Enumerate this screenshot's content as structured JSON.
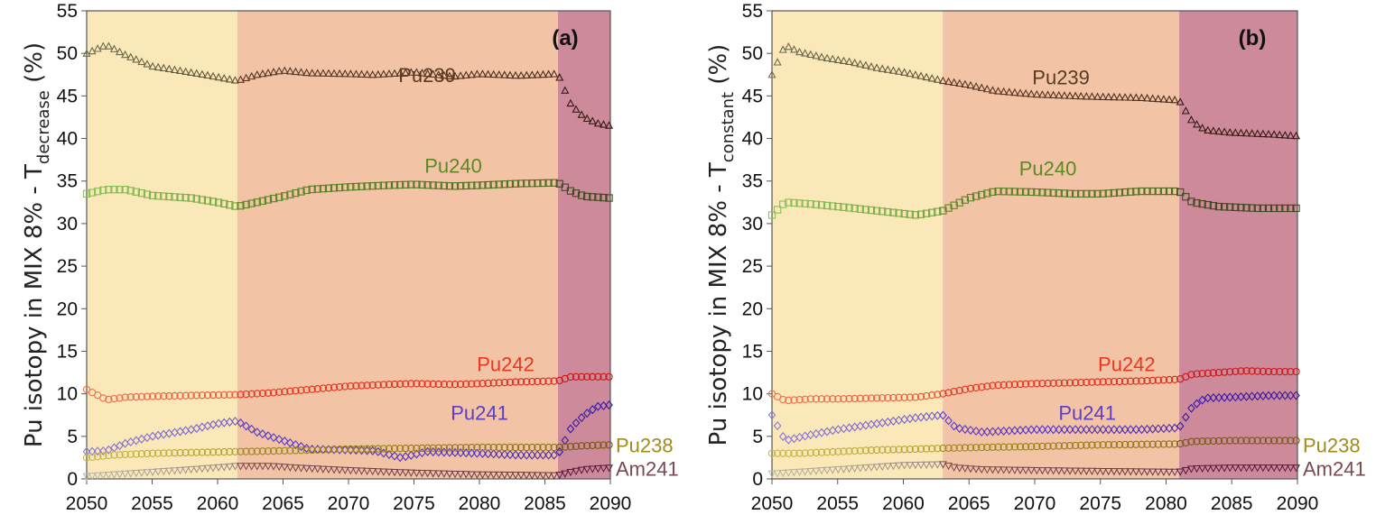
{
  "chart_data": [
    {
      "type": "scatter",
      "panel_label": "(a)",
      "ylabel": {
        "main": "Pu isotopy in MIX 8% - T",
        "subscript": "decrease",
        "unit": " (%)"
      },
      "xlim": [
        2050,
        2090
      ],
      "ylim": [
        0,
        55
      ],
      "xticks": [
        2050,
        2055,
        2060,
        2065,
        2070,
        2075,
        2080,
        2085,
        2090
      ],
      "yticks": [
        0,
        5,
        10,
        15,
        20,
        25,
        30,
        35,
        40,
        45,
        50,
        55
      ],
      "grid": false,
      "phases": [
        {
          "from": 2050,
          "to": 2061.5,
          "color": "#fbe8b8"
        },
        {
          "from": 2061.5,
          "to": 2086,
          "color": "#f3c3a5"
        },
        {
          "from": 2086,
          "to": 2090,
          "color": "#cc8a9a"
        }
      ],
      "series": [
        {
          "name": "Pu239",
          "marker": "triangle",
          "colors": [
            "#6e6e52",
            "#5b3a22",
            "#3a1a14"
          ],
          "label_at": [
            2076,
            47.5
          ],
          "points": [
            [
              2050,
              50
            ],
            [
              2051.5,
              51
            ],
            [
              2053,
              49.8
            ],
            [
              2055,
              48.5
            ],
            [
              2057,
              48
            ],
            [
              2059,
              47.5
            ],
            [
              2061.5,
              46.8
            ],
            [
              2063,
              47.5
            ],
            [
              2065,
              48
            ],
            [
              2067,
              47.7
            ],
            [
              2070,
              47.6
            ],
            [
              2072,
              47.5
            ],
            [
              2075,
              47.8
            ],
            [
              2078,
              47.3
            ],
            [
              2080,
              47.6
            ],
            [
              2083,
              47.4
            ],
            [
              2086,
              47.6
            ],
            [
              2087,
              44
            ],
            [
              2088,
              42.5
            ],
            [
              2089,
              41.8
            ],
            [
              2090,
              41.5
            ]
          ]
        },
        {
          "name": "Pu240",
          "marker": "square",
          "colors": [
            "#8cc05a",
            "#5a8a22",
            "#3e4a1e"
          ],
          "label_at": [
            2078,
            36.8
          ],
          "points": [
            [
              2050,
              33.5
            ],
            [
              2051.5,
              34
            ],
            [
              2053,
              34
            ],
            [
              2055,
              33.3
            ],
            [
              2058,
              33
            ],
            [
              2060,
              32.5
            ],
            [
              2061.5,
              32
            ],
            [
              2063,
              32.5
            ],
            [
              2065,
              33.2
            ],
            [
              2067,
              34
            ],
            [
              2070,
              34.3
            ],
            [
              2073,
              34.5
            ],
            [
              2075,
              34.6
            ],
            [
              2078,
              34.4
            ],
            [
              2080,
              34.5
            ],
            [
              2083,
              34.7
            ],
            [
              2086,
              34.8
            ],
            [
              2087,
              33.8
            ],
            [
              2088,
              33.2
            ],
            [
              2090,
              33
            ]
          ]
        },
        {
          "name": "Pu242",
          "marker": "circle",
          "colors": [
            "#f07050",
            "#e83820",
            "#cc1818"
          ],
          "label_at": [
            2082,
            13.5
          ],
          "points": [
            [
              2050,
              10.5
            ],
            [
              2051.5,
              9.3
            ],
            [
              2053,
              9.6
            ],
            [
              2055,
              9.7
            ],
            [
              2058,
              9.8
            ],
            [
              2061.5,
              9.9
            ],
            [
              2064,
              10.1
            ],
            [
              2067,
              10.5
            ],
            [
              2070,
              10.9
            ],
            [
              2073,
              11.1
            ],
            [
              2075,
              11.2
            ],
            [
              2078,
              11.1
            ],
            [
              2080,
              11.2
            ],
            [
              2083,
              11.4
            ],
            [
              2086,
              11.5
            ],
            [
              2087,
              12
            ],
            [
              2088,
              12
            ],
            [
              2090,
              12
            ]
          ]
        },
        {
          "name": "Pu241",
          "marker": "diamond",
          "colors": [
            "#8c78d8",
            "#5a3ec8",
            "#3a1aa8"
          ],
          "label_at": [
            2080,
            7.8
          ],
          "points": [
            [
              2050,
              3.2
            ],
            [
              2051.5,
              3.3
            ],
            [
              2053,
              4.2
            ],
            [
              2055,
              5
            ],
            [
              2058,
              5.8
            ],
            [
              2060,
              6.5
            ],
            [
              2061.5,
              6.8
            ],
            [
              2063,
              5.5
            ],
            [
              2065,
              4.5
            ],
            [
              2067,
              3.5
            ],
            [
              2070,
              3.4
            ],
            [
              2072,
              3.3
            ],
            [
              2074,
              2.5
            ],
            [
              2076,
              3.2
            ],
            [
              2078,
              3.1
            ],
            [
              2080,
              3
            ],
            [
              2083,
              2.8
            ],
            [
              2086,
              2.8
            ],
            [
              2087,
              6
            ],
            [
              2088,
              7.5
            ],
            [
              2089,
              8.5
            ],
            [
              2090,
              8.7
            ]
          ]
        },
        {
          "name": "Pu238",
          "marker": "circle",
          "colors": [
            "#c8b848",
            "#a08c1a",
            "#7a5a14"
          ],
          "label_at": [
            2091.5,
            4
          ],
          "points": [
            [
              2050,
              2.5
            ],
            [
              2052,
              2.8
            ],
            [
              2055,
              3
            ],
            [
              2058,
              3.1
            ],
            [
              2061.5,
              3.2
            ],
            [
              2065,
              3.3
            ],
            [
              2070,
              3.5
            ],
            [
              2075,
              3.6
            ],
            [
              2080,
              3.7
            ],
            [
              2086,
              3.7
            ],
            [
              2088,
              3.9
            ],
            [
              2090,
              4
            ]
          ]
        },
        {
          "name": "Am241",
          "marker": "triangle-down",
          "colors": [
            "#b8b8a8",
            "#7a4a52",
            "#5a1a3a"
          ],
          "label_at": [
            2091.5,
            1.2
          ],
          "points": [
            [
              2050,
              0.3
            ],
            [
              2053,
              0.6
            ],
            [
              2056,
              0.9
            ],
            [
              2058,
              1.1
            ],
            [
              2061.5,
              1.5
            ],
            [
              2064,
              1.5
            ],
            [
              2066,
              1.3
            ],
            [
              2070,
              1
            ],
            [
              2075,
              0.7
            ],
            [
              2080,
              0.5
            ],
            [
              2086,
              0.4
            ],
            [
              2087,
              0.8
            ],
            [
              2088,
              1.1
            ],
            [
              2090,
              1.3
            ]
          ]
        }
      ]
    },
    {
      "type": "scatter",
      "panel_label": "(b)",
      "ylabel": {
        "main": "Pu isotopy in MIX 8% - T",
        "subscript": "constant",
        "unit": " (%)"
      },
      "xlim": [
        2050,
        2090
      ],
      "ylim": [
        0,
        55
      ],
      "xticks": [
        2050,
        2055,
        2060,
        2065,
        2070,
        2075,
        2080,
        2085,
        2090
      ],
      "yticks": [
        0,
        5,
        10,
        15,
        20,
        25,
        30,
        35,
        40,
        45,
        50,
        55
      ],
      "grid": false,
      "phases": [
        {
          "from": 2050,
          "to": 2063,
          "color": "#fbe8b8"
        },
        {
          "from": 2063,
          "to": 2081,
          "color": "#f3c3a5"
        },
        {
          "from": 2081,
          "to": 2090,
          "color": "#cc8a9a"
        }
      ],
      "series": [
        {
          "name": "Pu239",
          "marker": "triangle",
          "colors": [
            "#6e6e52",
            "#5b3a22",
            "#3a1a14"
          ],
          "label_at": [
            2072,
            47.2
          ],
          "points": [
            [
              2050,
              47.5
            ],
            [
              2051,
              51
            ],
            [
              2052,
              50.2
            ],
            [
              2054,
              49.5
            ],
            [
              2056,
              49
            ],
            [
              2058,
              48.3
            ],
            [
              2060,
              47.8
            ],
            [
              2063,
              46.8
            ],
            [
              2065,
              46.3
            ],
            [
              2067,
              45.6
            ],
            [
              2070,
              45.2
            ],
            [
              2073,
              45
            ],
            [
              2075,
              44.9
            ],
            [
              2078,
              44.8
            ],
            [
              2081,
              44.5
            ],
            [
              2082,
              42
            ],
            [
              2083,
              41
            ],
            [
              2085,
              40.7
            ],
            [
              2088,
              40.5
            ],
            [
              2090,
              40.3
            ]
          ]
        },
        {
          "name": "Pu240",
          "marker": "square",
          "colors": [
            "#8cc05a",
            "#5a8a22",
            "#3e4a1e"
          ],
          "label_at": [
            2071,
            36.5
          ],
          "points": [
            [
              2050,
              31
            ],
            [
              2051,
              32.5
            ],
            [
              2053,
              32.3
            ],
            [
              2055,
              32
            ],
            [
              2058,
              31.5
            ],
            [
              2061,
              31
            ],
            [
              2063,
              31.5
            ],
            [
              2065,
              33
            ],
            [
              2067,
              33.8
            ],
            [
              2070,
              33.7
            ],
            [
              2073,
              33.5
            ],
            [
              2075,
              33.5
            ],
            [
              2078,
              33.8
            ],
            [
              2081,
              33.8
            ],
            [
              2082,
              32.5
            ],
            [
              2084,
              32
            ],
            [
              2087,
              31.8
            ],
            [
              2090,
              31.8
            ]
          ]
        },
        {
          "name": "Pu242",
          "marker": "circle",
          "colors": [
            "#f07050",
            "#e83820",
            "#cc1818"
          ],
          "label_at": [
            2077,
            13.5
          ],
          "points": [
            [
              2050,
              10
            ],
            [
              2051,
              9.2
            ],
            [
              2053,
              9.4
            ],
            [
              2055,
              9.4
            ],
            [
              2058,
              9.5
            ],
            [
              2061,
              9.6
            ],
            [
              2063,
              10
            ],
            [
              2065,
              10.6
            ],
            [
              2067,
              11
            ],
            [
              2070,
              11.2
            ],
            [
              2073,
              11.3
            ],
            [
              2075,
              11.4
            ],
            [
              2078,
              11.5
            ],
            [
              2081,
              11.7
            ],
            [
              2082,
              12.3
            ],
            [
              2084,
              12.5
            ],
            [
              2086,
              12.7
            ],
            [
              2088,
              12.6
            ],
            [
              2090,
              12.6
            ]
          ]
        },
        {
          "name": "Pu241",
          "marker": "diamond",
          "colors": [
            "#8c78d8",
            "#5a3ec8",
            "#3a1aa8"
          ],
          "label_at": [
            2074,
            7.8
          ],
          "points": [
            [
              2050,
              7.5
            ],
            [
              2051,
              4.5
            ],
            [
              2053,
              5.2
            ],
            [
              2055,
              5.8
            ],
            [
              2058,
              6.5
            ],
            [
              2061,
              7.2
            ],
            [
              2063,
              7.5
            ],
            [
              2064,
              6
            ],
            [
              2066,
              5.5
            ],
            [
              2070,
              5.8
            ],
            [
              2073,
              5.8
            ],
            [
              2075,
              5.8
            ],
            [
              2078,
              5.8
            ],
            [
              2081,
              6
            ],
            [
              2082,
              8.5
            ],
            [
              2083,
              9.5
            ],
            [
              2085,
              9.6
            ],
            [
              2088,
              9.8
            ],
            [
              2090,
              9.8
            ]
          ]
        },
        {
          "name": "Pu238",
          "marker": "circle",
          "colors": [
            "#c8b848",
            "#a08c1a",
            "#7a5a14"
          ],
          "label_at": [
            2091.5,
            4
          ],
          "points": [
            [
              2050,
              3
            ],
            [
              2052,
              3
            ],
            [
              2055,
              3.2
            ],
            [
              2058,
              3.4
            ],
            [
              2061,
              3.5
            ],
            [
              2063,
              3.6
            ],
            [
              2066,
              3.7
            ],
            [
              2070,
              3.8
            ],
            [
              2075,
              4
            ],
            [
              2081,
              4.1
            ],
            [
              2082,
              4.4
            ],
            [
              2085,
              4.5
            ],
            [
              2090,
              4.5
            ]
          ]
        },
        {
          "name": "Am241",
          "marker": "triangle-down",
          "colors": [
            "#b8b8a8",
            "#7a4a52",
            "#5a1a3a"
          ],
          "label_at": [
            2091.5,
            1.2
          ],
          "points": [
            [
              2050,
              0.6
            ],
            [
              2053,
              0.9
            ],
            [
              2056,
              1.2
            ],
            [
              2060,
              1.6
            ],
            [
              2063,
              1.7
            ],
            [
              2064,
              1.3
            ],
            [
              2066,
              1.1
            ],
            [
              2070,
              1
            ],
            [
              2075,
              0.9
            ],
            [
              2081,
              0.8
            ],
            [
              2082,
              1.2
            ],
            [
              2085,
              1.3
            ],
            [
              2090,
              1.3
            ]
          ]
        }
      ]
    }
  ]
}
